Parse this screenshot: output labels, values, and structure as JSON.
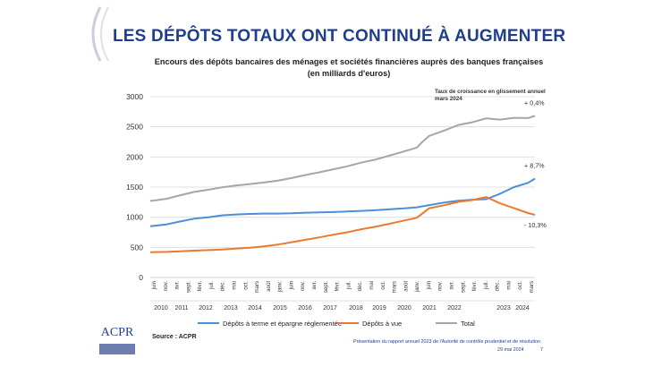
{
  "page": {
    "title": "LES DÉPÔTS TOTAUX ONT CONTINUÉ À AUGMENTER",
    "source": "Source : ACPR",
    "footer_text": "Présentation du rapport annuel 2023 de l'Autorité de contrôle prudentiel et de résolution",
    "footer_date": "29 mai 2024",
    "page_number": "7",
    "logo_text": "ACPR"
  },
  "colors": {
    "title": "#1f3e8c",
    "terme": "#4a8fd8",
    "vue": "#ec7a2e",
    "total": "#a6a6a6",
    "grid": "#d9d9d9"
  },
  "chart_data": {
    "type": "line",
    "title_line1": "Encours des dépôts bancaires des ménages et sociétés financières auprès des banques françaises",
    "title_line2": "(en milliards d'euros)",
    "annotation": "Taux de croissance en glissement annuel mars 2024",
    "ylim": [
      0,
      3000
    ],
    "yticks": [
      0,
      500,
      1000,
      1500,
      2000,
      2500,
      3000
    ],
    "xlim": [
      2010.42,
      2024.25
    ],
    "month_ticks": [
      "juin",
      "nov.",
      "avr.",
      "sept.",
      "févr.",
      "juil.",
      "déc.",
      "mai",
      "oct.",
      "mars",
      "août",
      "janv.",
      "juin",
      "nov.",
      "avr.",
      "sept.",
      "févr.",
      "juil.",
      "déc.",
      "mai",
      "oct.",
      "mars",
      "août",
      "janv.",
      "juin",
      "nov.",
      "avr.",
      "sept.",
      "févr.",
      "juil.",
      "déc.",
      "mai",
      "oct.",
      "mars"
    ],
    "year_labels": [
      "2010",
      "2011",
      "2012",
      "2013",
      "2014",
      "2015",
      "2016",
      "2017",
      "2018",
      "2019",
      "2020",
      "2021",
      "2022",
      "2023",
      "2024"
    ],
    "series": [
      {
        "name": "Dépôts à terme et épargne réglementée",
        "color": "#4a8fd8",
        "end_label": "+ 8,7%",
        "points": [
          [
            2010.42,
            850
          ],
          [
            2011.0,
            880
          ],
          [
            2011.5,
            930
          ],
          [
            2012.0,
            975
          ],
          [
            2012.5,
            1000
          ],
          [
            2013.0,
            1030
          ],
          [
            2013.5,
            1045
          ],
          [
            2014.0,
            1055
          ],
          [
            2014.5,
            1060
          ],
          [
            2015.0,
            1060
          ],
          [
            2015.5,
            1065
          ],
          [
            2016.0,
            1075
          ],
          [
            2016.5,
            1080
          ],
          [
            2017.0,
            1085
          ],
          [
            2017.5,
            1095
          ],
          [
            2018.0,
            1105
          ],
          [
            2018.5,
            1115
          ],
          [
            2019.0,
            1130
          ],
          [
            2019.5,
            1145
          ],
          [
            2020.0,
            1165
          ],
          [
            2020.5,
            1205
          ],
          [
            2021.0,
            1245
          ],
          [
            2021.5,
            1275
          ],
          [
            2022.0,
            1290
          ],
          [
            2022.5,
            1300
          ],
          [
            2023.0,
            1390
          ],
          [
            2023.5,
            1500
          ],
          [
            2024.0,
            1570
          ],
          [
            2024.25,
            1640
          ]
        ]
      },
      {
        "name": "Dépôts à vue",
        "color": "#ec7a2e",
        "end_label": "- 10,3%",
        "points": [
          [
            2010.42,
            420
          ],
          [
            2011.0,
            425
          ],
          [
            2011.5,
            435
          ],
          [
            2012.0,
            445
          ],
          [
            2012.5,
            455
          ],
          [
            2013.0,
            465
          ],
          [
            2013.5,
            480
          ],
          [
            2014.0,
            495
          ],
          [
            2014.5,
            515
          ],
          [
            2015.0,
            545
          ],
          [
            2015.5,
            585
          ],
          [
            2016.0,
            625
          ],
          [
            2016.5,
            665
          ],
          [
            2017.0,
            710
          ],
          [
            2017.5,
            750
          ],
          [
            2018.0,
            800
          ],
          [
            2018.5,
            840
          ],
          [
            2019.0,
            890
          ],
          [
            2019.5,
            940
          ],
          [
            2020.0,
            990
          ],
          [
            2020.2,
            1060
          ],
          [
            2020.45,
            1150
          ],
          [
            2021.0,
            1200
          ],
          [
            2021.5,
            1255
          ],
          [
            2022.0,
            1285
          ],
          [
            2022.5,
            1335
          ],
          [
            2023.0,
            1230
          ],
          [
            2023.5,
            1150
          ],
          [
            2024.0,
            1070
          ],
          [
            2024.25,
            1040
          ]
        ]
      },
      {
        "name": "Total",
        "color": "#a6a6a6",
        "end_label": "+ 0,4%",
        "points": [
          [
            2010.42,
            1270
          ],
          [
            2011.0,
            1305
          ],
          [
            2011.5,
            1365
          ],
          [
            2012.0,
            1420
          ],
          [
            2012.5,
            1455
          ],
          [
            2013.0,
            1495
          ],
          [
            2013.5,
            1525
          ],
          [
            2014.0,
            1550
          ],
          [
            2014.5,
            1575
          ],
          [
            2015.0,
            1605
          ],
          [
            2015.5,
            1650
          ],
          [
            2016.0,
            1700
          ],
          [
            2016.5,
            1745
          ],
          [
            2017.0,
            1795
          ],
          [
            2017.5,
            1845
          ],
          [
            2018.0,
            1905
          ],
          [
            2018.5,
            1955
          ],
          [
            2019.0,
            2020
          ],
          [
            2019.5,
            2085
          ],
          [
            2020.0,
            2155
          ],
          [
            2020.2,
            2250
          ],
          [
            2020.45,
            2350
          ],
          [
            2021.0,
            2440
          ],
          [
            2021.5,
            2530
          ],
          [
            2022.0,
            2575
          ],
          [
            2022.5,
            2640
          ],
          [
            2023.0,
            2620
          ],
          [
            2023.5,
            2650
          ],
          [
            2024.0,
            2645
          ],
          [
            2024.25,
            2680
          ]
        ]
      }
    ]
  }
}
